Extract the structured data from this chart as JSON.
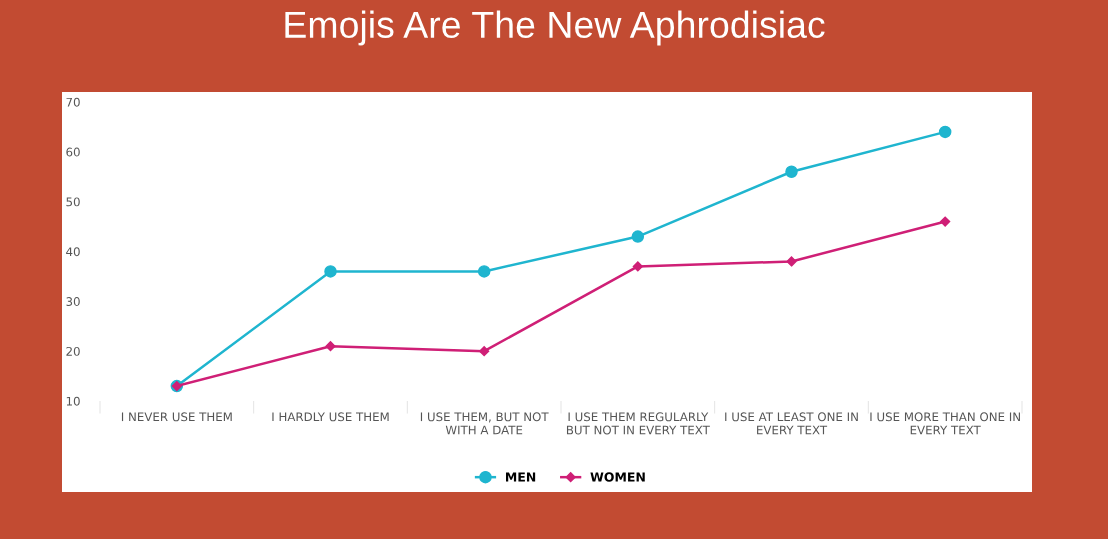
{
  "chart_data": {
    "type": "line",
    "title": "Emojis Are The New Aphrodisiac",
    "categories": [
      "I NEVER USE THEM",
      "I HARDLY USE THEM",
      "I USE THEM, BUT NOT\nWITH A DATE",
      "I USE THEM REGULARLY\nBUT NOT IN EVERY TEXT",
      "I USE AT LEAST ONE IN\nEVERY TEXT",
      "I USE MORE THAN ONE IN\nEVERY TEXT"
    ],
    "series": [
      {
        "name": "MEN",
        "color": "#1fb5cf",
        "marker": "circle",
        "values": [
          13,
          36,
          36,
          43,
          56,
          64
        ]
      },
      {
        "name": "WOMEN",
        "color": "#cf1f76",
        "marker": "diamond",
        "values": [
          13,
          21,
          20,
          37,
          38,
          46
        ]
      }
    ],
    "ylim": [
      10,
      70
    ],
    "yticks": [
      10,
      20,
      30,
      40,
      50,
      60,
      70
    ],
    "grid": false,
    "legend": "bottom",
    "line_style": "solid"
  }
}
